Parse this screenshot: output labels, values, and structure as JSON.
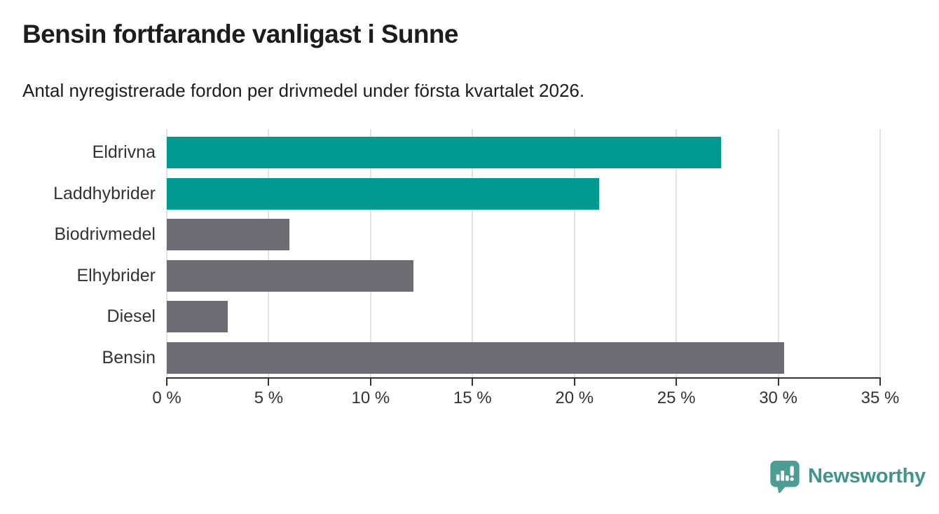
{
  "header": {
    "title": "Bensin fortfarande vanligast i Sunne",
    "subtitle": "Antal nyregistrerade fordon per drivmedel under första kvartalet 2026."
  },
  "chart_data": {
    "type": "bar",
    "orientation": "horizontal",
    "title": "Bensin fortfarande vanligast i Sunne",
    "subtitle": "Antal nyregistrerade fordon per drivmedel under första kvartalet 2026.",
    "categories": [
      "Eldrivna",
      "Laddhybrider",
      "Biodrivmedel",
      "Elhybrider",
      "Diesel",
      "Bensin"
    ],
    "values": [
      27.2,
      21.2,
      6.0,
      12.1,
      3.0,
      30.3
    ],
    "unit": "%",
    "bar_colors": [
      "#009a91",
      "#009a91",
      "#6e6d73",
      "#6e6d73",
      "#6e6d73",
      "#6e6d73"
    ],
    "highlight_color": "#009a91",
    "base_color": "#6e6d73",
    "highlighted_categories": [
      "Eldrivna",
      "Laddhybrider"
    ],
    "xlim": [
      0,
      35
    ],
    "xticks": [
      0,
      5,
      10,
      15,
      20,
      25,
      30,
      35
    ],
    "xtick_label_format": "{value} %",
    "grid": true,
    "gridline_color": "#e3e3e3",
    "axis_color": "#333333",
    "legend_position": "none"
  },
  "footer": {
    "brand": "Newsworthy",
    "brand_color": "#3e948e",
    "logo_icon": "newsworthy-pin-chart-icon",
    "logo_icon_color": "#4d9d97"
  }
}
